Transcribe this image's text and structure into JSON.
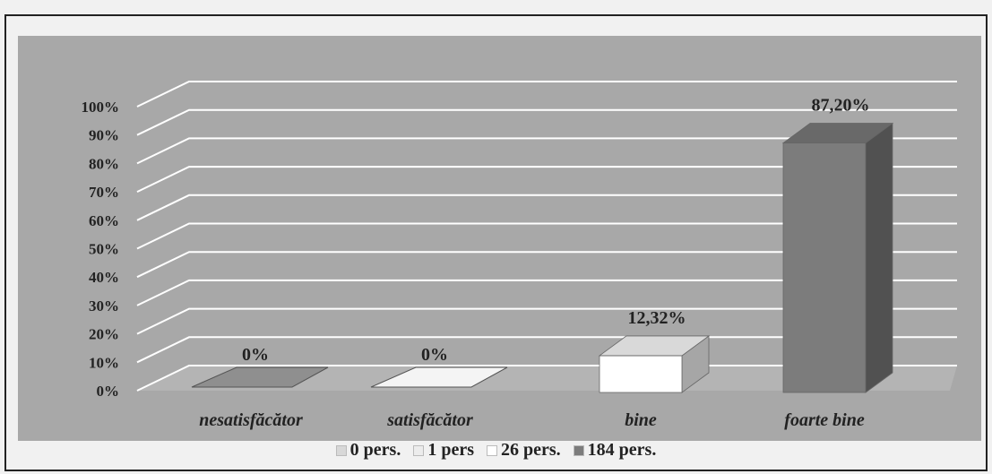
{
  "chart_data": {
    "type": "bar",
    "style": "3d-column",
    "categories": [
      "nesatisfăcător",
      "satisfăcător",
      "bine",
      "foarte bine"
    ],
    "values": [
      0,
      0,
      12.32,
      87.2
    ],
    "data_labels": [
      "0%",
      "0%",
      "12,32%",
      "87,20%"
    ],
    "legend": [
      {
        "label": "0 pers.",
        "color": "#d8d8d8"
      },
      {
        "label": "1 pers",
        "color": "#ececec"
      },
      {
        "label": "26 pers.",
        "color": "#ffffff"
      },
      {
        "label": "184 pers.",
        "color": "#7c7c7c"
      }
    ],
    "bar_colors": [
      "#8f8f8f",
      "#f4f4f4",
      "#ffffff",
      "#7c7c7c"
    ],
    "y_ticks": [
      "0%",
      "10%",
      "20%",
      "30%",
      "40%",
      "50%",
      "60%",
      "70%",
      "80%",
      "90%",
      "100%"
    ],
    "ylim": [
      0,
      100
    ],
    "grid": true,
    "legend_position": "bottom"
  }
}
